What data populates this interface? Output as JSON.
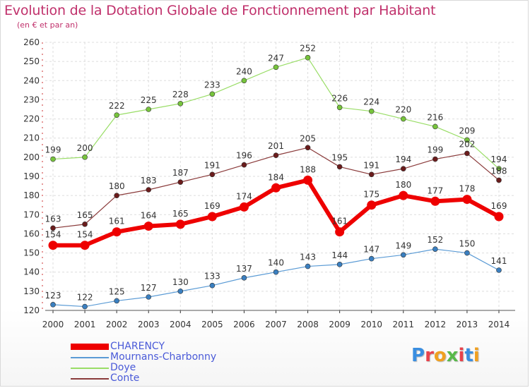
{
  "header": {
    "title": "Evolution de la Dotation Globale de Fonctionnement par Habitant",
    "subtitle": "(en € et par an)"
  },
  "logo": {
    "text": "Proxiti",
    "colors": [
      "#3a8ee0",
      "#e8424b",
      "#f0a020",
      "#58b94a",
      "#e8424b",
      "#3a8ee0",
      "#f0a020"
    ]
  },
  "chart_data": {
    "type": "line",
    "x": [
      2000,
      2001,
      2002,
      2003,
      2004,
      2005,
      2006,
      2007,
      2008,
      2009,
      2010,
      2011,
      2012,
      2013,
      2014
    ],
    "ylim": [
      120,
      260
    ],
    "yticks": [
      120,
      130,
      140,
      150,
      160,
      170,
      180,
      190,
      200,
      210,
      220,
      230,
      240,
      250,
      260
    ],
    "grid": true,
    "legend_position": "bottom-left",
    "series": [
      {
        "name": "Doye",
        "color": "#99dd66",
        "marker": "#77c43c",
        "width": 1.2,
        "values": [
          199,
          200,
          222,
          225,
          228,
          233,
          240,
          247,
          252,
          226,
          224,
          220,
          216,
          209,
          194
        ]
      },
      {
        "name": "Conte",
        "color": "#8a3a3a",
        "marker": "#6b1c1c",
        "width": 1.2,
        "values": [
          163,
          165,
          180,
          183,
          187,
          191,
          196,
          201,
          205,
          195,
          191,
          194,
          199,
          202,
          188
        ]
      },
      {
        "name": "Mournans-Charbonny",
        "color": "#5b9bd5",
        "marker": "#3a7fc0",
        "width": 1.2,
        "values": [
          123,
          122,
          125,
          127,
          130,
          133,
          137,
          140,
          143,
          144,
          147,
          149,
          152,
          150,
          141
        ]
      },
      {
        "name": "CHARENCY",
        "color": "#ee0000",
        "marker": "#ee0000",
        "width": 6,
        "values": [
          154,
          154,
          161,
          164,
          165,
          169,
          174,
          184,
          188,
          161,
          175,
          180,
          177,
          178,
          169
        ]
      }
    ],
    "legend_order": [
      "CHARENCY",
      "Mournans-Charbonny",
      "Doye",
      "Conte"
    ]
  }
}
